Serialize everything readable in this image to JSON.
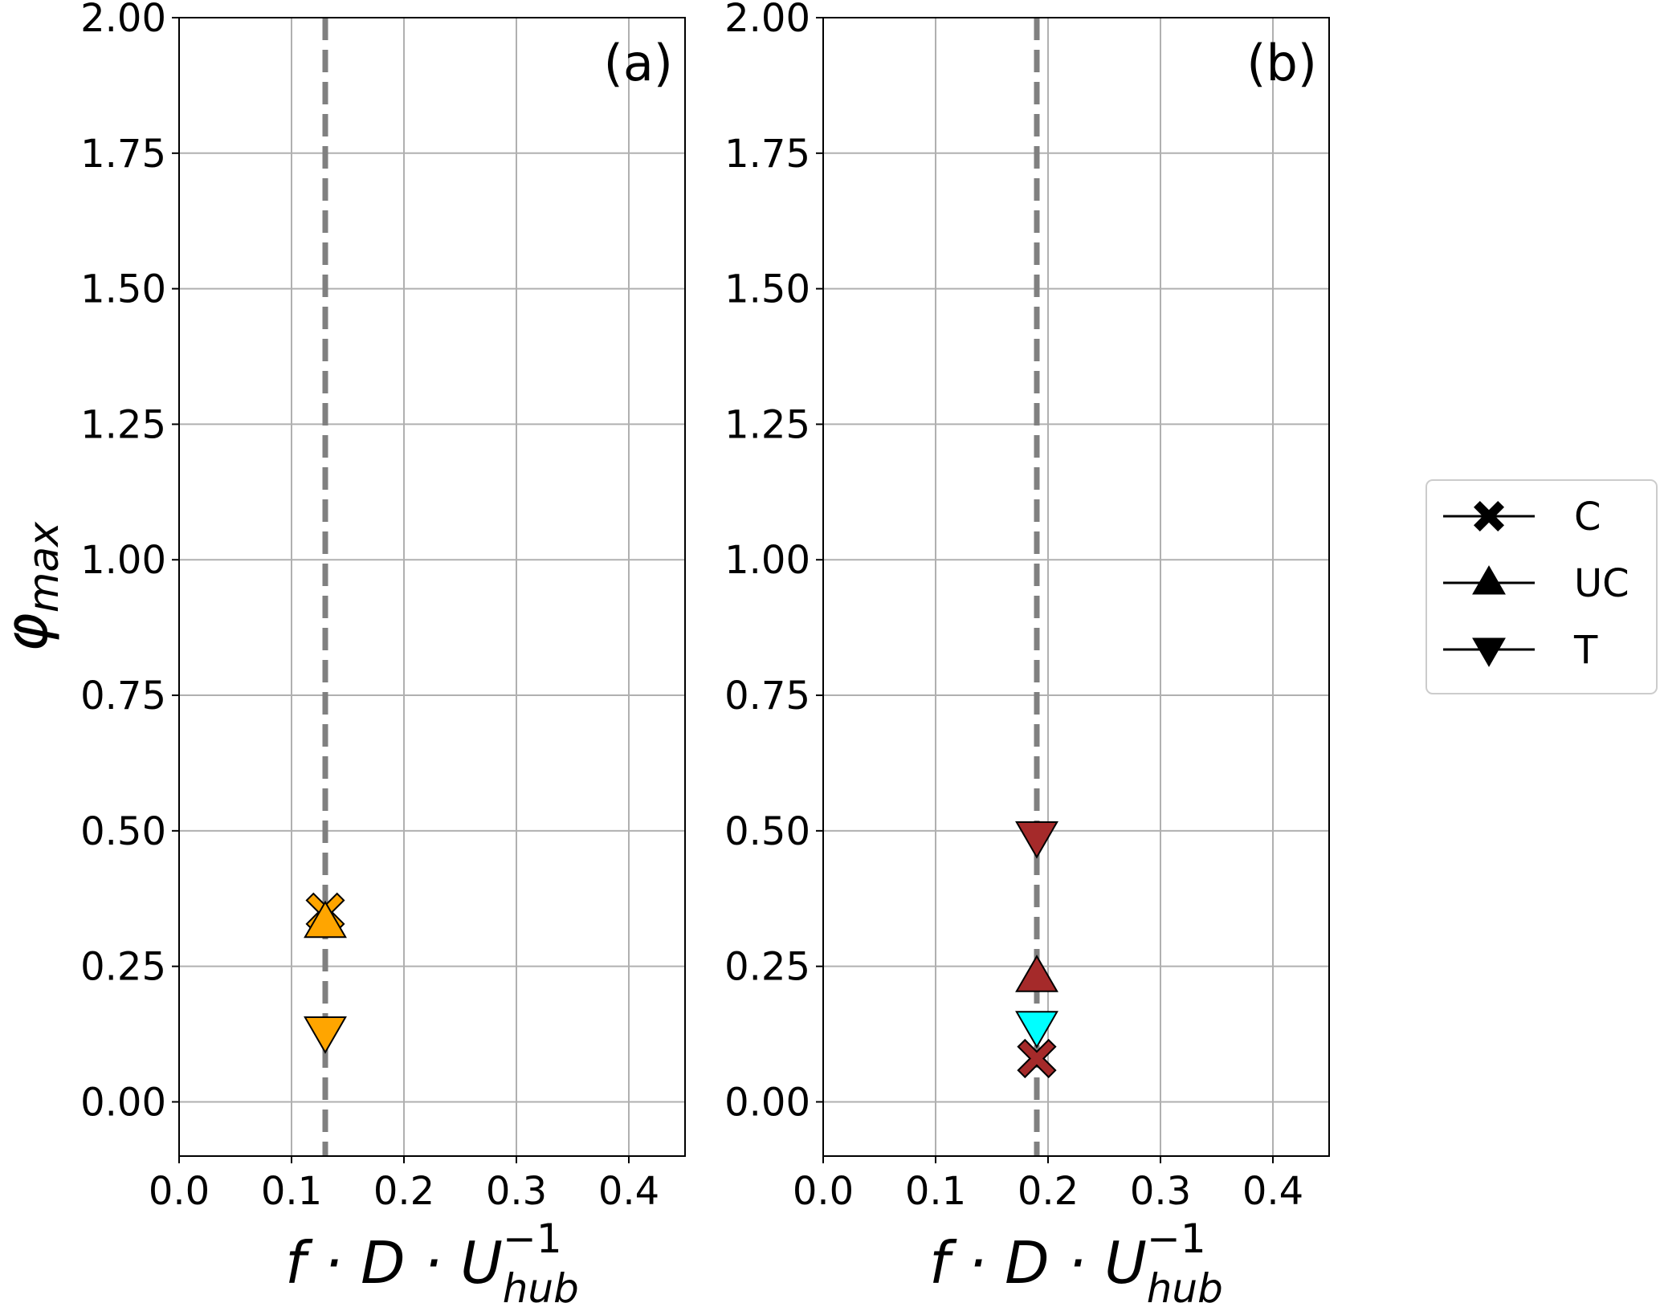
{
  "chart_data": [
    {
      "type": "scatter",
      "panel_label": "(a)",
      "xlim": [
        0,
        0.45
      ],
      "ylim": [
        -0.1,
        2.0
      ],
      "xticks": [
        "0.0",
        "0.1",
        "0.2",
        "0.3",
        "0.4"
      ],
      "xtick_values": [
        0,
        0.1,
        0.2,
        0.3,
        0.4
      ],
      "yticks": [
        "0.00",
        "0.25",
        "0.50",
        "0.75",
        "1.00",
        "1.25",
        "1.50",
        "1.75",
        "2.00"
      ],
      "ytick_values": [
        0,
        0.25,
        0.5,
        0.75,
        1.0,
        1.25,
        1.5,
        1.75,
        2.0
      ],
      "xlabel": {
        "main": "f · D · U",
        "sup": "−1",
        "sub": "hub"
      },
      "ylabel": {
        "main": "φ",
        "sub": "max"
      },
      "grid": true,
      "vline": {
        "x": 0.13,
        "color": "#808080",
        "style": "dashed"
      },
      "points": [
        {
          "marker": "x",
          "x": 0.13,
          "y": 0.35,
          "color": "#FFA500"
        },
        {
          "marker": "triangle-up",
          "x": 0.13,
          "y": 0.33,
          "color": "#FFA500"
        },
        {
          "marker": "triangle-down",
          "x": 0.13,
          "y": 0.13,
          "color": "#FFA500"
        }
      ]
    },
    {
      "type": "scatter",
      "panel_label": "(b)",
      "xlim": [
        0,
        0.45
      ],
      "ylim": [
        -0.1,
        2.0
      ],
      "xticks": [
        "0.0",
        "0.1",
        "0.2",
        "0.3",
        "0.4"
      ],
      "xtick_values": [
        0,
        0.1,
        0.2,
        0.3,
        0.4
      ],
      "yticks": [
        "0.00",
        "0.25",
        "0.50",
        "0.75",
        "1.00",
        "1.25",
        "1.50",
        "1.75",
        "2.00"
      ],
      "ytick_values": [
        0,
        0.25,
        0.5,
        0.75,
        1.0,
        1.25,
        1.5,
        1.75,
        2.0
      ],
      "xlabel": {
        "main": "f · D · U",
        "sup": "−1",
        "sub": "hub"
      },
      "grid": true,
      "vline": {
        "x": 0.19,
        "color": "#808080",
        "style": "dashed"
      },
      "points": [
        {
          "marker": "triangle-down",
          "x": 0.19,
          "y": 0.49,
          "color": "#A52A2A"
        },
        {
          "marker": "triangle-up",
          "x": 0.19,
          "y": 0.23,
          "color": "#A52A2A"
        },
        {
          "marker": "triangle-down",
          "x": 0.19,
          "y": 0.14,
          "color": "#00FFFF"
        },
        {
          "marker": "x",
          "x": 0.19,
          "y": 0.08,
          "color": "#00FFFF"
        },
        {
          "marker": "x",
          "x": 0.19,
          "y": 0.08,
          "color": "#A52A2A"
        }
      ]
    }
  ],
  "legend": {
    "placement": "right",
    "entries": [
      {
        "label": "C",
        "marker": "x"
      },
      {
        "label": "UC",
        "marker": "triangle-up"
      },
      {
        "label": "T",
        "marker": "triangle-down"
      }
    ]
  }
}
